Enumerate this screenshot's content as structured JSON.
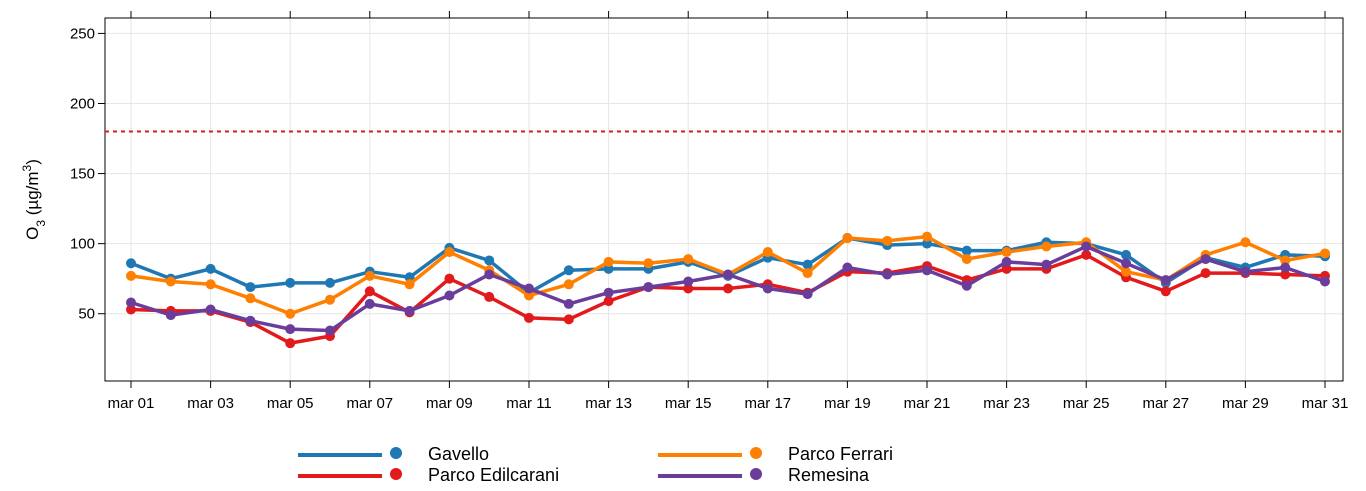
{
  "chart_data": {
    "type": "line",
    "y_label": [
      "O",
      "3",
      " (µg/m",
      "3",
      ")"
    ],
    "categories": [
      "mar 01",
      null,
      "mar 03",
      null,
      "mar 05",
      null,
      "mar 07",
      null,
      "mar 09",
      null,
      "mar 11",
      null,
      "mar 13",
      null,
      "mar 15",
      null,
      "mar 17",
      null,
      "mar 19",
      null,
      "mar 21",
      null,
      "mar 23",
      null,
      "mar 25",
      null,
      "mar 27",
      null,
      "mar 29",
      null,
      "mar 31"
    ],
    "series": [
      {
        "name": "Gavello",
        "color": "#1f78b4",
        "values": [
          86,
          75,
          82,
          69,
          72,
          72,
          80,
          76,
          97,
          88,
          65,
          81,
          82,
          82,
          87,
          77,
          90,
          85,
          104,
          99,
          100,
          95,
          95,
          101,
          100,
          92,
          72,
          90,
          83,
          92,
          91
        ]
      },
      {
        "name": "Parco Edilcarani",
        "color": "#e31a1c",
        "values": [
          53,
          52,
          52,
          44,
          29,
          34,
          66,
          51,
          75,
          62,
          47,
          46,
          59,
          69,
          68,
          68,
          71,
          65,
          80,
          79,
          84,
          74,
          82,
          82,
          92,
          76,
          66,
          79,
          79,
          78,
          77
        ]
      },
      {
        "name": "Parco Ferrari",
        "color": "#ff7f00",
        "values": [
          77,
          73,
          71,
          61,
          50,
          60,
          77,
          71,
          94,
          81,
          63,
          71,
          87,
          86,
          89,
          78,
          94,
          79,
          104,
          102,
          105,
          89,
          94,
          98,
          101,
          80,
          74,
          92,
          101,
          88,
          93
        ]
      },
      {
        "name": "Remesina",
        "color": "#6a3d9a",
        "values": [
          58,
          49,
          53,
          45,
          39,
          38,
          57,
          52,
          63,
          78,
          68,
          57,
          65,
          69,
          73,
          78,
          68,
          64,
          83,
          78,
          81,
          70,
          87,
          85,
          98,
          86,
          74,
          89,
          80,
          83,
          73
        ]
      }
    ],
    "threshold": 180,
    "threshold_color": "#e31a1c",
    "ylim": [
      2,
      261
    ],
    "yticks": [
      50,
      100,
      150,
      200,
      250
    ],
    "grid": true
  }
}
